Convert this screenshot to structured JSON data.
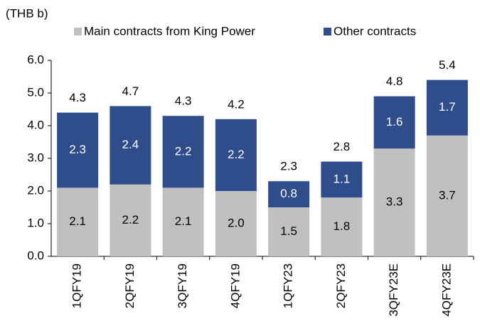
{
  "chart_data": {
    "type": "stacked_bar",
    "unit_label": "(THB b)",
    "categories": [
      "1QFY19",
      "2QFY19",
      "3QFY19",
      "4QFY19",
      "1QFY23",
      "2QFY23",
      "3QFY23E",
      "4QFY23E"
    ],
    "series": [
      {
        "name": "Main contracts from King Power",
        "color": "#c0c0c0",
        "label_color": "#000000",
        "values": [
          2.1,
          2.2,
          2.1,
          2.0,
          1.5,
          1.8,
          3.3,
          3.7
        ],
        "value_labels": [
          "2.1",
          "2.2",
          "2.1",
          "2.0",
          "1.5",
          "1.8",
          "3.3",
          "3.7"
        ]
      },
      {
        "name": "Other contracts",
        "color": "#2e4d8a",
        "label_color": "#ffffff",
        "values": [
          2.3,
          2.4,
          2.2,
          2.2,
          0.8,
          1.1,
          1.6,
          1.7
        ],
        "value_labels": [
          "2.3",
          "2.4",
          "2.2",
          "2.2",
          "0.8",
          "1.1",
          "1.6",
          "1.7"
        ]
      }
    ],
    "totals": [
      4.3,
      4.7,
      4.3,
      4.2,
      2.3,
      2.8,
      4.8,
      5.4
    ],
    "ylim": [
      0,
      6
    ],
    "yticks": [
      {
        "value": 0,
        "label": "0.0"
      },
      {
        "value": 1,
        "label": "1.0"
      },
      {
        "value": 2,
        "label": "2.0"
      },
      {
        "value": 3,
        "label": "3.0"
      },
      {
        "value": 4,
        "label": "4.0"
      },
      {
        "value": 5,
        "label": "5.0"
      },
      {
        "value": 6,
        "label": "6.0"
      }
    ],
    "grid": false
  }
}
